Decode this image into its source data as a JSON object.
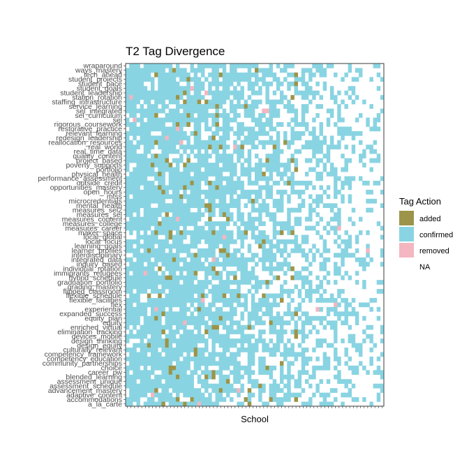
{
  "chart_data": {
    "type": "heatmap",
    "title": "T2 Tag Divergence",
    "xlabel": "School",
    "ylabel": "",
    "x_count": 72,
    "y_categories": [
      "a_la_carte",
      "accommodations",
      "adaptive_content",
      "advancement_mastery",
      "assessment_schedule",
      "assessment_unique",
      "blended_learning",
      "career_pw",
      "choice",
      "community_partnerships",
      "competency_education",
      "competency_framework",
      "culturally_relevant",
      "design_equity",
      "design_thinking",
      "devices_mobile",
      "elimination_tracking",
      "enriched_virtual",
      "equity",
      "equity_plan",
      "expanded_success",
      "experiential",
      "flex",
      "flexible_facilities",
      "flexible_schedule",
      "flipped_classroom",
      "grading_mastery",
      "graduation_portfolio",
      "hybrid_schedule",
      "immigrants_refugees",
      "individual_rotation",
      "inquiry_based",
      "integrated_data",
      "interdisciplinary",
      "learner_profiles",
      "learning_goals",
      "local_focus",
      "local_global",
      "maker_space",
      "measures_career",
      "measures_college",
      "measures_content",
      "measures_sel",
      "measures_sel2",
      "mental_health",
      "microcredentials",
      "mtss",
      "open_hours",
      "opportunities_mastery",
      "outside_credit",
      "performance_assessment",
      "physical_health",
      "portfolio",
      "poverty_supports",
      "project_based",
      "quality_content",
      "real_time_data",
      "real_world",
      "reallocation_resources",
      "redesign_leadership",
      "relevant_learning",
      "restorative_practice",
      "rigorous_coursework",
      "sel",
      "sel_curriculum",
      "sel_integrated",
      "service_learning",
      "staffing_infrastructure",
      "station_rotation",
      "student_leadership",
      "student_goals",
      "student_pace",
      "student_projects",
      "tech_ahead",
      "ways_mastery",
      "wraparound"
    ],
    "legend": {
      "title": "Tag Action",
      "entries": [
        {
          "label": "added",
          "color": "#9c9448"
        },
        {
          "label": "confirmed",
          "color": "#89d4e2"
        },
        {
          "label": "removed",
          "color": "#f4b6c0"
        },
        {
          "label": "NA",
          "color": "#ffffff"
        }
      ]
    },
    "legend_position": "right",
    "grid": false,
    "note": "Cell-level values are not individually labeled; dense confirmed coverage toward the left, sparse toward the right, with scattered added/removed cells."
  }
}
